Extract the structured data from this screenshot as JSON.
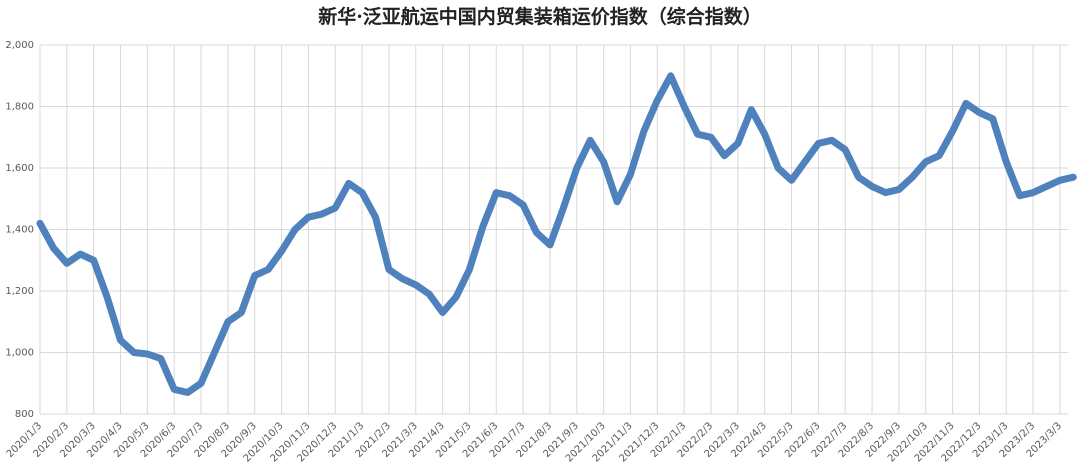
{
  "chart_data": {
    "type": "line",
    "title": "新华·泛亚航运中国内贸集装箱运价指数（综合指数）",
    "categories": [
      "2020/1/3",
      null,
      "2020/2/3",
      null,
      "2020/3/3",
      null,
      "2020/4/3",
      null,
      "2020/5/3",
      null,
      "2020/6/3",
      null,
      "2020/7/3",
      null,
      "2020/8/3",
      null,
      "2020/9/3",
      null,
      "2020/10/3",
      null,
      "2020/11/3",
      null,
      "2020/12/3",
      null,
      "2021/1/3",
      null,
      "2021/2/3",
      null,
      "2021/3/3",
      null,
      "2021/4/3",
      null,
      "2021/5/3",
      null,
      "2021/6/3",
      null,
      "2021/7/3",
      null,
      "2021/8/3",
      null,
      "2021/9/3",
      null,
      "2021/10/3",
      null,
      "2021/11/3",
      null,
      "2021/12/3",
      null,
      "2022/1/3",
      null,
      "2022/2/3",
      null,
      "2022/3/3",
      null,
      "2022/4/3",
      null,
      "2022/5/3",
      null,
      "2022/6/3",
      null,
      "2022/7/3",
      null,
      "2022/8/3",
      null,
      "2022/9/3",
      null,
      "2022/10/3",
      null,
      "2022/11/3",
      null,
      "2022/12/3",
      null,
      "2023/1/3",
      null,
      "2023/2/3",
      null,
      "2023/3/3",
      null
    ],
    "series": [
      {
        "name": "综合指数",
        "color": "#4f81bd",
        "values": [
          1420,
          1340,
          1290,
          1320,
          1300,
          1180,
          1040,
          1000,
          995,
          980,
          880,
          870,
          900,
          1000,
          1100,
          1130,
          1250,
          1270,
          1330,
          1400,
          1440,
          1450,
          1470,
          1550,
          1520,
          1440,
          1270,
          1240,
          1220,
          1190,
          1130,
          1180,
          1270,
          1410,
          1520,
          1510,
          1480,
          1390,
          1350,
          1470,
          1600,
          1690,
          1620,
          1490,
          1580,
          1720,
          1820,
          1900,
          1800,
          1710,
          1700,
          1640,
          1680,
          1790,
          1710,
          1600,
          1560,
          1620,
          1680,
          1690,
          1660,
          1570,
          1540,
          1520,
          1530,
          1570,
          1620,
          1640,
          1720,
          1810,
          1780,
          1760,
          1620,
          1510,
          1520,
          1540,
          1560,
          1570
        ]
      }
    ],
    "ylim": [
      800,
      2000
    ],
    "yticks": [
      {
        "value": 800,
        "label": "800"
      },
      {
        "value": 1000,
        "label": "1,000"
      },
      {
        "value": 1200,
        "label": "1,200"
      },
      {
        "value": 1400,
        "label": "1,400"
      },
      {
        "value": 1600,
        "label": "1,600"
      },
      {
        "value": 1800,
        "label": "1,800"
      },
      {
        "value": 2000,
        "label": "2,000"
      }
    ],
    "grid": true
  }
}
